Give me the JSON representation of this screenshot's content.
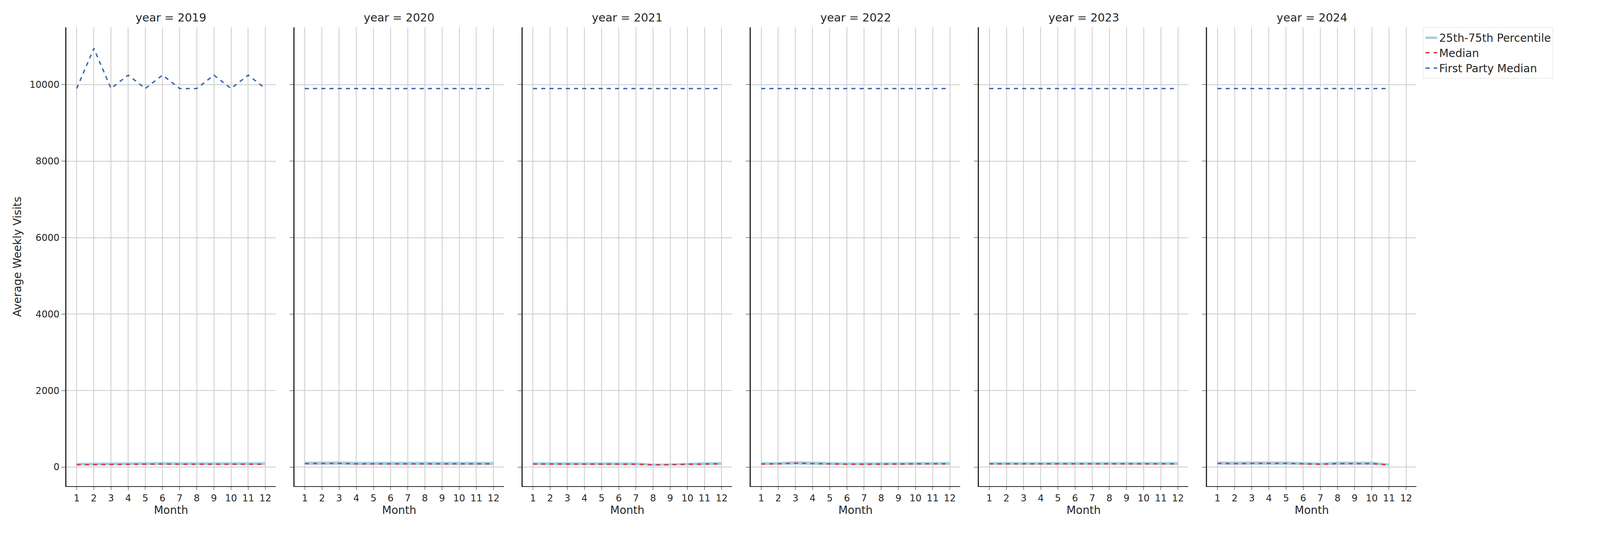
{
  "chart_data": [
    {
      "type": "line",
      "title": "year = 2019",
      "x_label": "Month",
      "y_label": "Average Weekly Visits",
      "x": [
        1,
        2,
        3,
        4,
        5,
        6,
        7,
        8,
        9,
        10,
        11,
        12
      ],
      "xlim": [
        0.4,
        12.6
      ],
      "xticks": [
        1,
        2,
        3,
        4,
        5,
        6,
        7,
        8,
        9,
        10,
        11,
        12
      ],
      "ylim": [
        -500,
        11500
      ],
      "yticks": [
        0,
        2000,
        4000,
        6000,
        8000,
        10000
      ],
      "grid": true,
      "series": [
        {
          "name": "25th-75th Percentile",
          "type": "band",
          "color": "#a6cee3",
          "lower": [
            40,
            45,
            45,
            50,
            50,
            50,
            50,
            50,
            45,
            45,
            50,
            50
          ],
          "upper": [
            110,
            115,
            120,
            125,
            130,
            130,
            125,
            125,
            120,
            120,
            125,
            125
          ]
        },
        {
          "name": "Median",
          "color": "#d9363e",
          "line_style": "dashed",
          "values": [
            60,
            65,
            70,
            75,
            80,
            80,
            75,
            75,
            70,
            70,
            75,
            75
          ]
        },
        {
          "name": "First Party Median",
          "color": "#3a68ae",
          "line_style": "dashed",
          "values": [
            9900,
            10950,
            9900,
            10250,
            9900,
            10250,
            9900,
            9900,
            10250,
            9900,
            10250,
            9900
          ]
        }
      ]
    },
    {
      "type": "line",
      "title": "year = 2020",
      "x_label": "Month",
      "tick_labels": "x",
      "x": [
        1,
        2,
        3,
        4,
        5,
        6,
        7,
        8,
        9,
        10,
        11,
        12
      ],
      "xlim": [
        0.4,
        12.6
      ],
      "xticks": [
        1,
        2,
        3,
        4,
        5,
        6,
        7,
        8,
        9,
        10,
        11,
        12
      ],
      "ylim": [
        -500,
        11500
      ],
      "yticks": [
        0,
        2000,
        4000,
        6000,
        8000,
        10000
      ],
      "grid": true,
      "series": [
        {
          "name": "25th-75th Percentile",
          "type": "band",
          "color": "#a6cee3",
          "lower": [
            55,
            55,
            60,
            50,
            50,
            50,
            50,
            50,
            50,
            50,
            50,
            50
          ],
          "upper": [
            140,
            140,
            145,
            135,
            135,
            135,
            135,
            135,
            135,
            135,
            135,
            135
          ]
        },
        {
          "name": "Median",
          "color": "#d9363e",
          "line_style": "dashed",
          "values": [
            90,
            90,
            95,
            85,
            85,
            85,
            85,
            85,
            85,
            85,
            85,
            85
          ]
        },
        {
          "name": "First Party Median",
          "color": "#3a68ae",
          "line_style": "dashed",
          "values": [
            9900,
            9900,
            9900,
            9900,
            9900,
            9900,
            9900,
            9900,
            9900,
            9900,
            9900,
            9900
          ]
        }
      ]
    },
    {
      "type": "line",
      "title": "year = 2021",
      "x_label": "Month",
      "tick_labels": "x",
      "x": [
        1,
        2,
        3,
        4,
        5,
        6,
        7,
        8,
        9,
        10,
        11,
        12
      ],
      "xlim": [
        0.4,
        12.6
      ],
      "xticks": [
        1,
        2,
        3,
        4,
        5,
        6,
        7,
        8,
        9,
        10,
        11,
        12
      ],
      "ylim": [
        -500,
        11500
      ],
      "yticks": [
        0,
        2000,
        4000,
        6000,
        8000,
        10000
      ],
      "grid": true,
      "series": [
        {
          "name": "25th-75th Percentile",
          "type": "band",
          "color": "#a6cee3",
          "lower": [
            50,
            50,
            50,
            50,
            50,
            45,
            45,
            30,
            35,
            40,
            50,
            55
          ],
          "upper": [
            125,
            125,
            125,
            125,
            125,
            120,
            120,
            90,
            95,
            110,
            125,
            130
          ]
        },
        {
          "name": "Median",
          "color": "#d9363e",
          "line_style": "dashed",
          "values": [
            80,
            80,
            80,
            80,
            80,
            75,
            75,
            55,
            60,
            70,
            80,
            85
          ]
        },
        {
          "name": "First Party Median",
          "color": "#3a68ae",
          "line_style": "dashed",
          "values": [
            9900,
            9900,
            9900,
            9900,
            9900,
            9900,
            9900,
            9900,
            9900,
            9900,
            9900,
            9900
          ]
        }
      ]
    },
    {
      "type": "line",
      "title": "year = 2022",
      "x_label": "Month",
      "tick_labels": "x",
      "x": [
        1,
        2,
        3,
        4,
        5,
        6,
        7,
        8,
        9,
        10,
        11,
        12
      ],
      "xlim": [
        0.4,
        12.6
      ],
      "xticks": [
        1,
        2,
        3,
        4,
        5,
        6,
        7,
        8,
        9,
        10,
        11,
        12
      ],
      "ylim": [
        -500,
        11500
      ],
      "yticks": [
        0,
        2000,
        4000,
        6000,
        8000,
        10000
      ],
      "grid": true,
      "series": [
        {
          "name": "25th-75th Percentile",
          "type": "band",
          "color": "#a6cee3",
          "lower": [
            50,
            55,
            65,
            55,
            50,
            45,
            45,
            45,
            50,
            55,
            55,
            55
          ],
          "upper": [
            125,
            130,
            150,
            140,
            125,
            120,
            120,
            120,
            125,
            130,
            130,
            130
          ]
        },
        {
          "name": "Median",
          "color": "#d9363e",
          "line_style": "dashed",
          "values": [
            80,
            85,
            100,
            90,
            80,
            75,
            75,
            75,
            80,
            85,
            85,
            85
          ]
        },
        {
          "name": "First Party Median",
          "color": "#3a68ae",
          "line_style": "dashed",
          "values": [
            9900,
            9900,
            9900,
            9900,
            9900,
            9900,
            9900,
            9900,
            9900,
            9900,
            9900,
            9900
          ]
        }
      ]
    },
    {
      "type": "line",
      "title": "year = 2023",
      "x_label": "Month",
      "tick_labels": "x",
      "x": [
        1,
        2,
        3,
        4,
        5,
        6,
        7,
        8,
        9,
        10,
        11,
        12
      ],
      "xlim": [
        0.4,
        12.6
      ],
      "xticks": [
        1,
        2,
        3,
        4,
        5,
        6,
        7,
        8,
        9,
        10,
        11,
        12
      ],
      "ylim": [
        -500,
        11500
      ],
      "yticks": [
        0,
        2000,
        4000,
        6000,
        8000,
        10000
      ],
      "grid": true,
      "series": [
        {
          "name": "25th-75th Percentile",
          "type": "band",
          "color": "#a6cee3",
          "lower": [
            55,
            55,
            55,
            55,
            55,
            55,
            55,
            55,
            55,
            60,
            60,
            55
          ],
          "upper": [
            130,
            130,
            130,
            130,
            130,
            130,
            130,
            130,
            130,
            135,
            135,
            130
          ]
        },
        {
          "name": "Median",
          "color": "#d9363e",
          "line_style": "dashed",
          "values": [
            85,
            85,
            85,
            85,
            85,
            85,
            85,
            85,
            85,
            90,
            90,
            85
          ]
        },
        {
          "name": "First Party Median",
          "color": "#3a68ae",
          "line_style": "dashed",
          "values": [
            9900,
            9900,
            9900,
            9900,
            9900,
            9900,
            9900,
            9900,
            9900,
            9900,
            9900,
            9900
          ]
        }
      ]
    },
    {
      "type": "line",
      "title": "year = 2024",
      "x_label": "Month",
      "tick_labels": "x",
      "legend": "upper right",
      "x": [
        1,
        2,
        3,
        4,
        5,
        6,
        7,
        8,
        9,
        10,
        11,
        12
      ],
      "xlim": [
        0.4,
        12.6
      ],
      "xticks": [
        1,
        2,
        3,
        4,
        5,
        6,
        7,
        8,
        9,
        10,
        11,
        12
      ],
      "ylim": [
        -500,
        11500
      ],
      "yticks": [
        0,
        2000,
        4000,
        6000,
        8000,
        10000
      ],
      "grid": true,
      "series": [
        {
          "name": "25th-75th Percentile",
          "type": "band",
          "color": "#a6cee3",
          "lower": [
            60,
            55,
            60,
            60,
            60,
            55,
            45,
            55,
            55,
            55,
            35,
            null
          ],
          "upper": [
            145,
            140,
            145,
            145,
            145,
            130,
            115,
            140,
            140,
            140,
            90,
            null
          ]
        },
        {
          "name": "Median",
          "color": "#d9363e",
          "line_style": "dashed",
          "values": [
            95,
            90,
            95,
            95,
            95,
            85,
            75,
            90,
            90,
            90,
            55,
            null
          ]
        },
        {
          "name": "First Party Median",
          "color": "#3a68ae",
          "line_style": "dashed",
          "values": [
            9900,
            9900,
            9900,
            9900,
            9900,
            9900,
            9900,
            9900,
            9900,
            9900,
            9900,
            null
          ]
        }
      ]
    }
  ]
}
